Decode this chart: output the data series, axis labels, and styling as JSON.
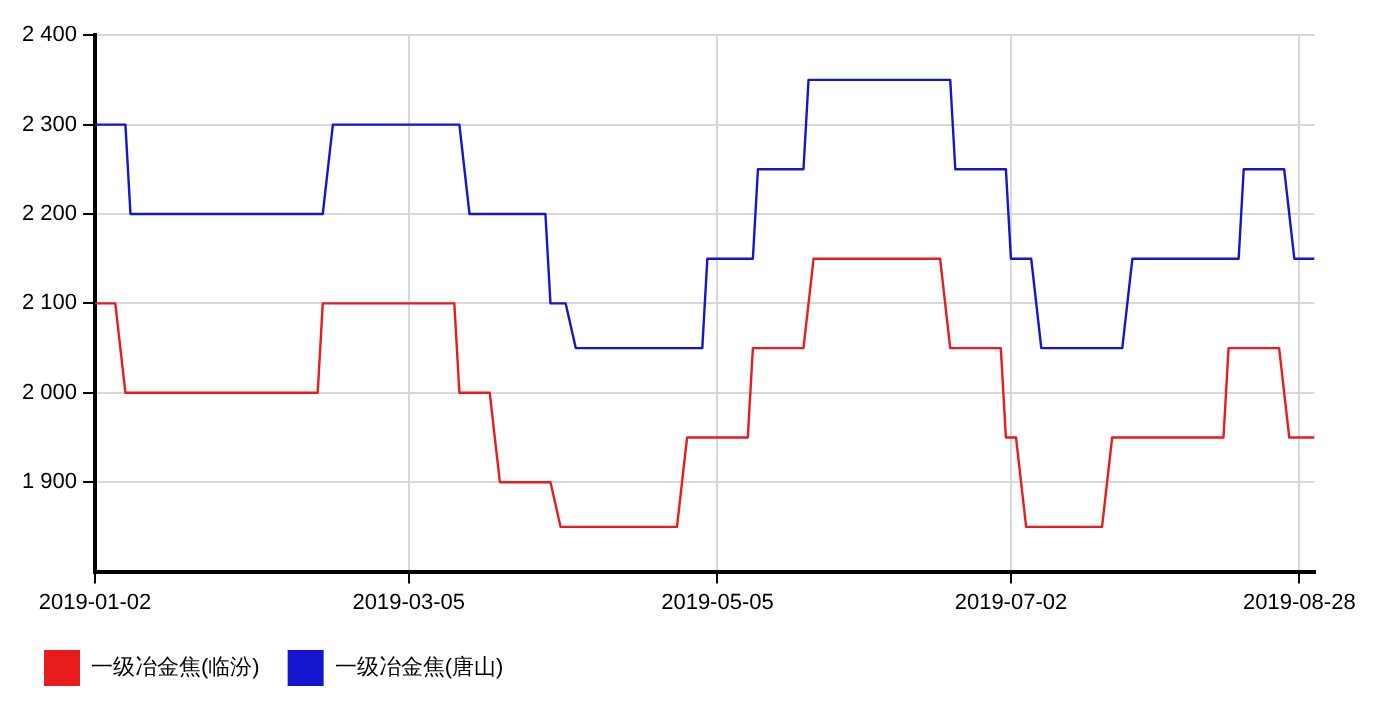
{
  "chart_data": {
    "type": "line",
    "xlim": [
      "2019-01-02",
      "2019-08-31"
    ],
    "xticks": [
      "2019-01-02",
      "2019-03-05",
      "2019-05-05",
      "2019-07-02",
      "2019-08-28"
    ],
    "ylim": [
      1800,
      2400
    ],
    "yticks": [
      {
        "value": 1900,
        "label": "1 900"
      },
      {
        "value": 2000,
        "label": "2 000"
      },
      {
        "value": 2100,
        "label": "2 100"
      },
      {
        "value": 2200,
        "label": "2 200"
      },
      {
        "value": 2300,
        "label": "2 300"
      },
      {
        "value": 2400,
        "label": "2 400"
      }
    ],
    "grid": true,
    "legend": "bottom left",
    "marker": "none",
    "line_style": "solid",
    "series": [
      {
        "name": "一级冶金焦(临汾)",
        "color": "#e81c1c",
        "x": [
          "2019-01-02",
          "2019-01-06",
          "2019-01-08",
          "2019-02-15",
          "2019-02-16",
          "2019-03-14",
          "2019-03-15",
          "2019-03-21",
          "2019-03-23",
          "2019-04-02",
          "2019-04-04",
          "2019-04-27",
          "2019-04-29",
          "2019-05-11",
          "2019-05-12",
          "2019-05-22",
          "2019-05-24",
          "2019-06-18",
          "2019-06-20",
          "2019-06-30",
          "2019-07-01",
          "2019-07-03",
          "2019-07-05",
          "2019-07-20",
          "2019-07-22",
          "2019-08-13",
          "2019-08-14",
          "2019-08-24",
          "2019-08-26",
          "2019-08-31"
        ],
        "values": [
          2100,
          2100,
          2000,
          2000,
          2100,
          2100,
          2000,
          2000,
          1900,
          1900,
          1850,
          1850,
          1950,
          1950,
          2050,
          2050,
          2150,
          2150,
          2050,
          2050,
          1950,
          1950,
          1850,
          1850,
          1950,
          1950,
          2050,
          2050,
          1950,
          1950
        ]
      },
      {
        "name": "一级冶金焦(唐山)",
        "color": "#1515d0",
        "x": [
          "2019-01-02",
          "2019-01-08",
          "2019-01-09",
          "2019-02-16",
          "2019-02-18",
          "2019-03-15",
          "2019-03-17",
          "2019-04-01",
          "2019-04-02",
          "2019-04-05",
          "2019-04-07",
          "2019-05-02",
          "2019-05-03",
          "2019-05-12",
          "2019-05-13",
          "2019-05-22",
          "2019-05-23",
          "2019-06-20",
          "2019-06-21",
          "2019-07-01",
          "2019-07-02",
          "2019-07-06",
          "2019-07-08",
          "2019-07-24",
          "2019-07-26",
          "2019-08-16",
          "2019-08-17",
          "2019-08-25",
          "2019-08-27",
          "2019-08-31"
        ],
        "values": [
          2300,
          2300,
          2200,
          2200,
          2300,
          2300,
          2200,
          2200,
          2100,
          2100,
          2050,
          2050,
          2150,
          2150,
          2250,
          2250,
          2350,
          2350,
          2250,
          2250,
          2150,
          2150,
          2050,
          2050,
          2150,
          2150,
          2250,
          2250,
          2150,
          2150
        ]
      }
    ]
  }
}
